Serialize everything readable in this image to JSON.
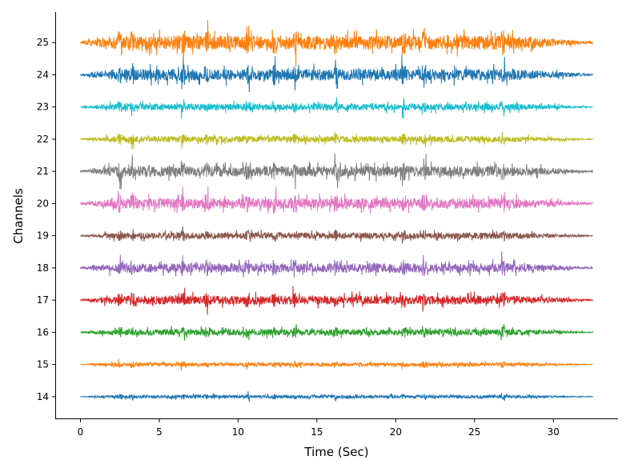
{
  "chart_data": {
    "type": "line",
    "title": "",
    "xlabel": "Time (Sec)",
    "ylabel": "Channels",
    "xlim": [
      -1.6,
      34.1
    ],
    "ylim": [
      13.3,
      25.95
    ],
    "xticks": [
      0,
      5,
      10,
      15,
      20,
      25,
      30
    ],
    "yticks": [
      14,
      15,
      16,
      17,
      18,
      19,
      20,
      21,
      22,
      23,
      24,
      25
    ],
    "grid": false,
    "legend": "none",
    "signal_duration_sec": 32.5,
    "series": [
      {
        "name": "14",
        "baseline": 14,
        "color": "#1f77b4",
        "amplitude": 0.06
      },
      {
        "name": "15",
        "baseline": 15,
        "color": "#ff7f0e",
        "amplitude": 0.07
      },
      {
        "name": "16",
        "baseline": 16,
        "color": "#2ca02c",
        "amplitude": 0.12
      },
      {
        "name": "17",
        "baseline": 17,
        "color": "#d62728",
        "amplitude": 0.17
      },
      {
        "name": "18",
        "baseline": 18,
        "color": "#9467bd",
        "amplitude": 0.18
      },
      {
        "name": "19",
        "baseline": 19,
        "color": "#8c564b",
        "amplitude": 0.12
      },
      {
        "name": "20",
        "baseline": 20,
        "color": "#e377c2",
        "amplitude": 0.2
      },
      {
        "name": "21",
        "baseline": 21,
        "color": "#7f7f7f",
        "amplitude": 0.2
      },
      {
        "name": "22",
        "baseline": 22,
        "color": "#bcbd22",
        "amplitude": 0.12
      },
      {
        "name": "23",
        "baseline": 23,
        "color": "#17becf",
        "amplitude": 0.13
      },
      {
        "name": "24",
        "baseline": 24,
        "color": "#1f77b4",
        "amplitude": 0.22
      },
      {
        "name": "25",
        "baseline": 25,
        "color": "#ff7f0e",
        "amplitude": 0.27
      }
    ]
  }
}
